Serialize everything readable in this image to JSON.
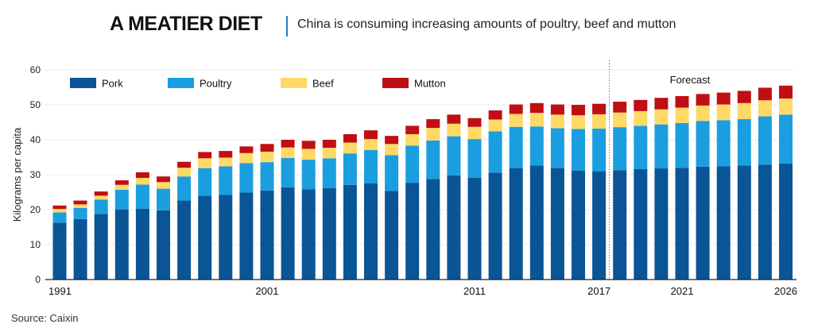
{
  "header": {
    "title": "A MEATIER DIET",
    "subtitle": "China is consuming increasing amounts of poultry, beef and mutton"
  },
  "source": "Source: Caixin",
  "colors": {
    "pork": "#0a5596",
    "poultry": "#1a9ee0",
    "beef": "#fed966",
    "mutton": "#c00f14",
    "divider": "#2a7fc0"
  },
  "chart_data": {
    "type": "bar",
    "stacked": true,
    "ylabel": "Kilograms per capita",
    "ylim": [
      0,
      60
    ],
    "yticks": [
      0,
      10,
      20,
      30,
      40,
      50,
      60
    ],
    "xtick_labels": [
      {
        "year": 1991,
        "label": "1991"
      },
      {
        "year": 2001,
        "label": "2001"
      },
      {
        "year": 2011,
        "label": "2011"
      },
      {
        "year": 2017,
        "label": "2017"
      },
      {
        "year": 2021,
        "label": "2021"
      },
      {
        "year": 2026,
        "label": "2026"
      }
    ],
    "forecast_label": "Forecast",
    "forecast_from_year": 2018,
    "legend_position": "top-left",
    "categories": [
      1991,
      1992,
      1993,
      1994,
      1995,
      1996,
      1997,
      1998,
      1999,
      2000,
      2001,
      2002,
      2003,
      2004,
      2005,
      2006,
      2007,
      2008,
      2009,
      2010,
      2011,
      2012,
      2013,
      2014,
      2015,
      2016,
      2017,
      2018,
      2019,
      2020,
      2021,
      2022,
      2023,
      2024,
      2025,
      2026
    ],
    "series": [
      {
        "name": "Pork",
        "color_key": "pork",
        "values": [
          16.3,
          17.3,
          18.8,
          20.0,
          20.3,
          19.8,
          22.6,
          24.0,
          24.2,
          24.9,
          25.5,
          26.4,
          25.8,
          26.2,
          27.1,
          27.5,
          25.4,
          27.7,
          28.8,
          29.8,
          29.1,
          30.6,
          31.9,
          32.6,
          31.9,
          31.2,
          31.0,
          31.3,
          31.6,
          31.8,
          32.0,
          32.3,
          32.4,
          32.6,
          32.9,
          33.2
        ]
      },
      {
        "name": "Poultry",
        "color_key": "poultry",
        "values": [
          2.9,
          3.2,
          4.1,
          5.7,
          6.9,
          6.2,
          6.9,
          7.9,
          8.2,
          8.4,
          8.1,
          8.4,
          8.5,
          8.5,
          9.0,
          9.6,
          10.2,
          10.6,
          11.0,
          11.2,
          11.1,
          11.8,
          11.8,
          11.2,
          11.4,
          11.9,
          12.2,
          12.3,
          12.4,
          12.6,
          12.8,
          13.1,
          13.2,
          13.3,
          13.8,
          14.0
        ]
      },
      {
        "name": "Beef",
        "color_key": "beef",
        "values": [
          1.0,
          1.0,
          1.1,
          1.4,
          1.9,
          1.9,
          2.5,
          2.8,
          2.5,
          2.9,
          3.0,
          3.0,
          3.1,
          3.0,
          3.1,
          3.1,
          3.2,
          3.3,
          3.6,
          3.6,
          3.5,
          3.4,
          3.7,
          3.9,
          3.9,
          3.9,
          4.1,
          4.2,
          4.2,
          4.3,
          4.4,
          4.4,
          4.5,
          4.6,
          4.6,
          4.6
        ]
      },
      {
        "name": "Mutton",
        "color_key": "mutton",
        "values": [
          1.0,
          1.1,
          1.2,
          1.3,
          1.6,
          1.6,
          1.7,
          1.8,
          1.9,
          1.9,
          2.2,
          2.2,
          2.3,
          2.3,
          2.4,
          2.5,
          2.3,
          2.4,
          2.5,
          2.6,
          2.5,
          2.6,
          2.7,
          2.8,
          2.9,
          3.0,
          3.0,
          3.1,
          3.2,
          3.3,
          3.3,
          3.3,
          3.4,
          3.5,
          3.6,
          3.7
        ]
      }
    ]
  }
}
